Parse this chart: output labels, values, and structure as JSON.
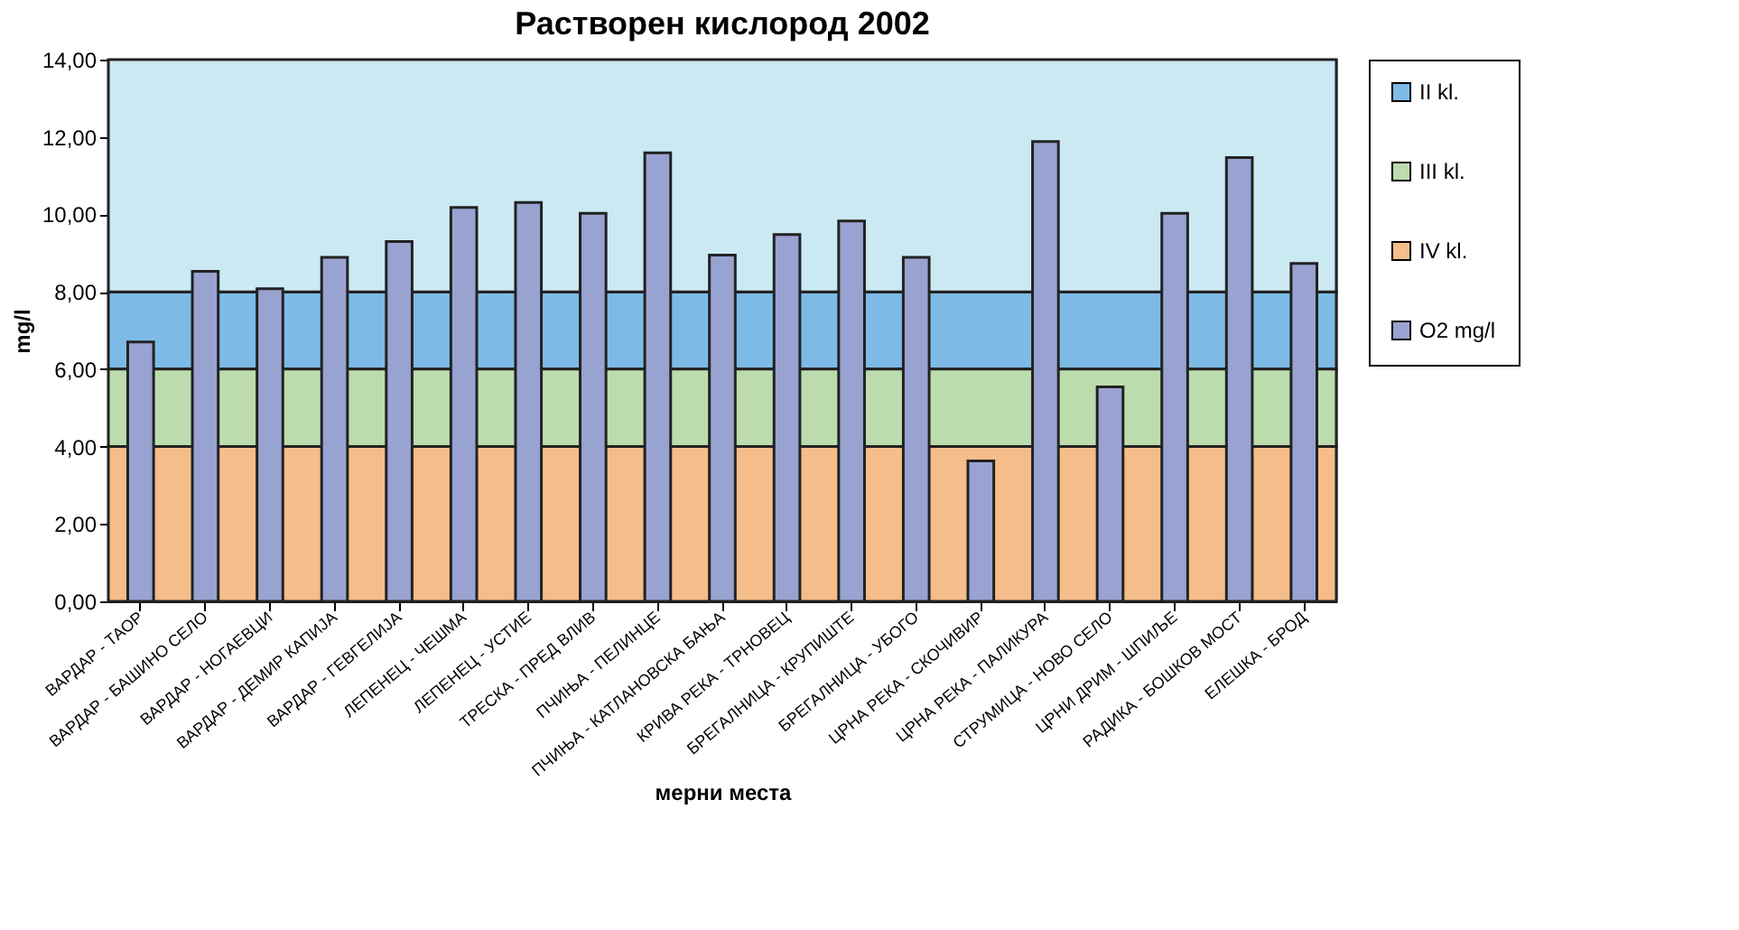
{
  "chart_data": {
    "type": "bar",
    "title": "Растворен кислород  2002",
    "xlabel": "мерни места",
    "ylabel": "mg/l",
    "categories": [
      "ВАРДАР - ТАОР",
      "ВАРДАР - БАШИНО СЕЛО",
      "ВАРДАР - НОГАЕВЦИ",
      "ВАРДАР - ДЕМИР КАПИЈА",
      "ВАРДАР - ГЕВГЕЛИЈА",
      "ЛЕПЕНЕЦ - ЧЕШМА",
      "ЛЕПЕНЕЦ - УСТИЕ",
      "ТРЕСКА - ПРЕД ВЛИВ",
      "ПЧИЊА - ПЕЛИНЦЕ",
      "ПЧИЊА - КАТЛАНОВСКА БАЊА",
      "КРИВА РЕКА - ТРНОВЕЦ",
      "БРЕГАЛНИЦА - КРУПИШТЕ",
      "БРЕГАЛНИЦА - УБОГО",
      "ЦРНА РЕКА - СКОЧИВИР",
      "ЦРНА РЕКА - ПАЛИКУРА",
      "СТРУМИЦА - НОВО СЕЛО",
      "ЦРНИ ДРИМ - ШПИЉЕ",
      "РАДИКА - БОШКОВ МОСТ",
      "ЕЛЕШКА - БРОД"
    ],
    "series": [
      {
        "name": "O2 mg/l",
        "color": "#99a3d1",
        "values": [
          6.7,
          8.53,
          8.08,
          8.89,
          9.3,
          10.18,
          10.31,
          10.03,
          11.59,
          8.95,
          9.48,
          9.83,
          8.89,
          3.63,
          11.88,
          5.54,
          10.03,
          11.47,
          8.73
        ]
      }
    ],
    "bands": [
      {
        "axis": "y",
        "from": 6,
        "to": 8,
        "label": "II kl.",
        "color": "#7dbbe6"
      },
      {
        "axis": "y",
        "from": 4,
        "to": 6,
        "label": "III kl.",
        "color": "#bcdcae"
      },
      {
        "axis": "y",
        "from": 0,
        "to": 4,
        "label": "IV kl.",
        "color": "#f5bd89"
      },
      {
        "axis": "y",
        "from": 8,
        "to": 14,
        "color": "#cbe9f3"
      }
    ],
    "ylim": [
      0,
      14
    ],
    "yticks": [
      {
        "value": 0,
        "label": "0,00"
      },
      {
        "value": 2,
        "label": "2,00"
      },
      {
        "value": 4,
        "label": "4,00"
      },
      {
        "value": 6,
        "label": "6,00"
      },
      {
        "value": 8,
        "label": "8,00"
      },
      {
        "value": 10,
        "label": "10,00"
      },
      {
        "value": 12,
        "label": "12,00"
      },
      {
        "value": 14,
        "label": "14,00"
      }
    ],
    "legend": "right"
  }
}
